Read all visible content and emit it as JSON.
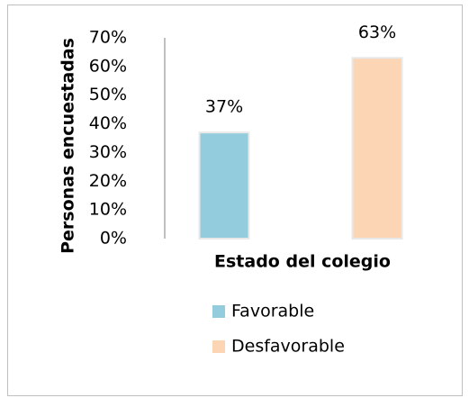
{
  "chart_data": {
    "type": "bar",
    "categories": [
      null
    ],
    "x_label": "Estado del colegio",
    "y_label": "Personas  encuestadas",
    "series": [
      {
        "name": "Favorable",
        "color": "#93cddd",
        "values": [
          37
        ],
        "value_labels": [
          "37%"
        ]
      },
      {
        "name": "Desfavorable",
        "color": "#fcd5b5",
        "values": [
          63
        ],
        "value_labels": [
          "63%"
        ]
      }
    ],
    "ylim": [
      0,
      70
    ],
    "yticks": [
      {
        "value": 0,
        "label": "0%"
      },
      {
        "value": 10,
        "label": "10%"
      },
      {
        "value": 20,
        "label": "20%"
      },
      {
        "value": 30,
        "label": "30%"
      },
      {
        "value": 40,
        "label": "40%"
      },
      {
        "value": 50,
        "label": "50%"
      },
      {
        "value": 60,
        "label": "60%"
      },
      {
        "value": 70,
        "label": "70%"
      }
    ],
    "grid": false,
    "legend": "bottom"
  }
}
